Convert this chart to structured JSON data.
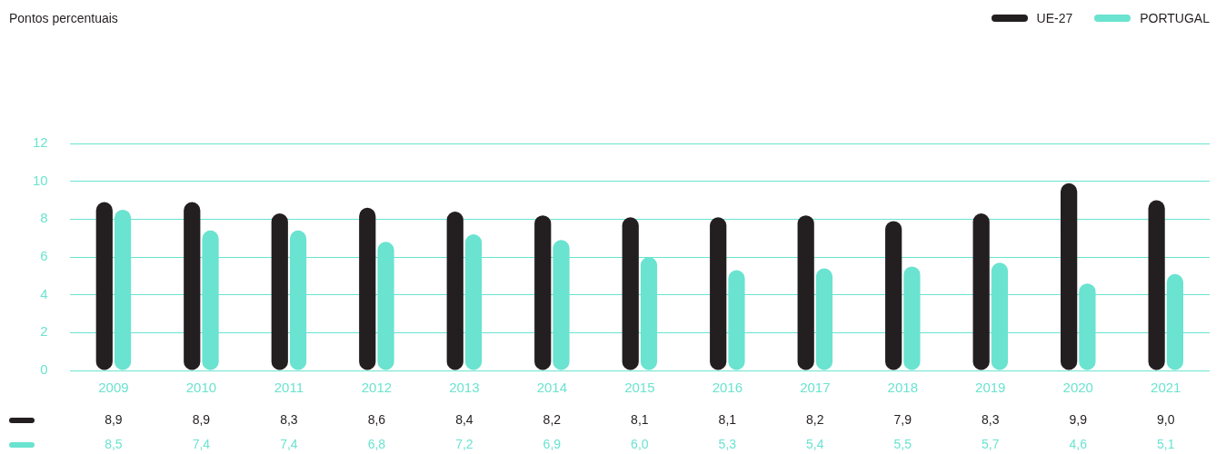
{
  "chart_data": {
    "type": "bar",
    "annotations": [
      "Pontos percentuais"
    ],
    "categories": [
      "2009",
      "2010",
      "2011",
      "2012",
      "2013",
      "2014",
      "2015",
      "2016",
      "2017",
      "2018",
      "2019",
      "2020",
      "2021"
    ],
    "series": [
      {
        "name": "UE-27",
        "color": "#231f20",
        "values": [
          8.9,
          8.9,
          8.3,
          8.6,
          8.4,
          8.2,
          8.1,
          8.1,
          8.2,
          7.9,
          8.3,
          9.9,
          9.0
        ],
        "value_labels": [
          "8,9",
          "8,9",
          "8,3",
          "8,6",
          "8,4",
          "8,2",
          "8,1",
          "8,1",
          "8,2",
          "7,9",
          "8,3",
          "9,9",
          "9,0"
        ]
      },
      {
        "name": "PORTUGAL",
        "color": "#6ae3d0",
        "values": [
          8.5,
          7.4,
          7.4,
          6.8,
          7.2,
          6.9,
          6.0,
          5.3,
          5.4,
          5.5,
          5.7,
          4.6,
          5.1
        ],
        "value_labels": [
          "8,5",
          "7,4",
          "7,4",
          "6,8",
          "7,2",
          "6,9",
          "6,0",
          "5,3",
          "5,4",
          "5,5",
          "5,7",
          "4,6",
          "5,1"
        ]
      }
    ],
    "ylim": [
      0,
      12
    ],
    "yticks": [
      0,
      2,
      4,
      6,
      8,
      10,
      12
    ],
    "grid": "y",
    "legend": "top right"
  }
}
